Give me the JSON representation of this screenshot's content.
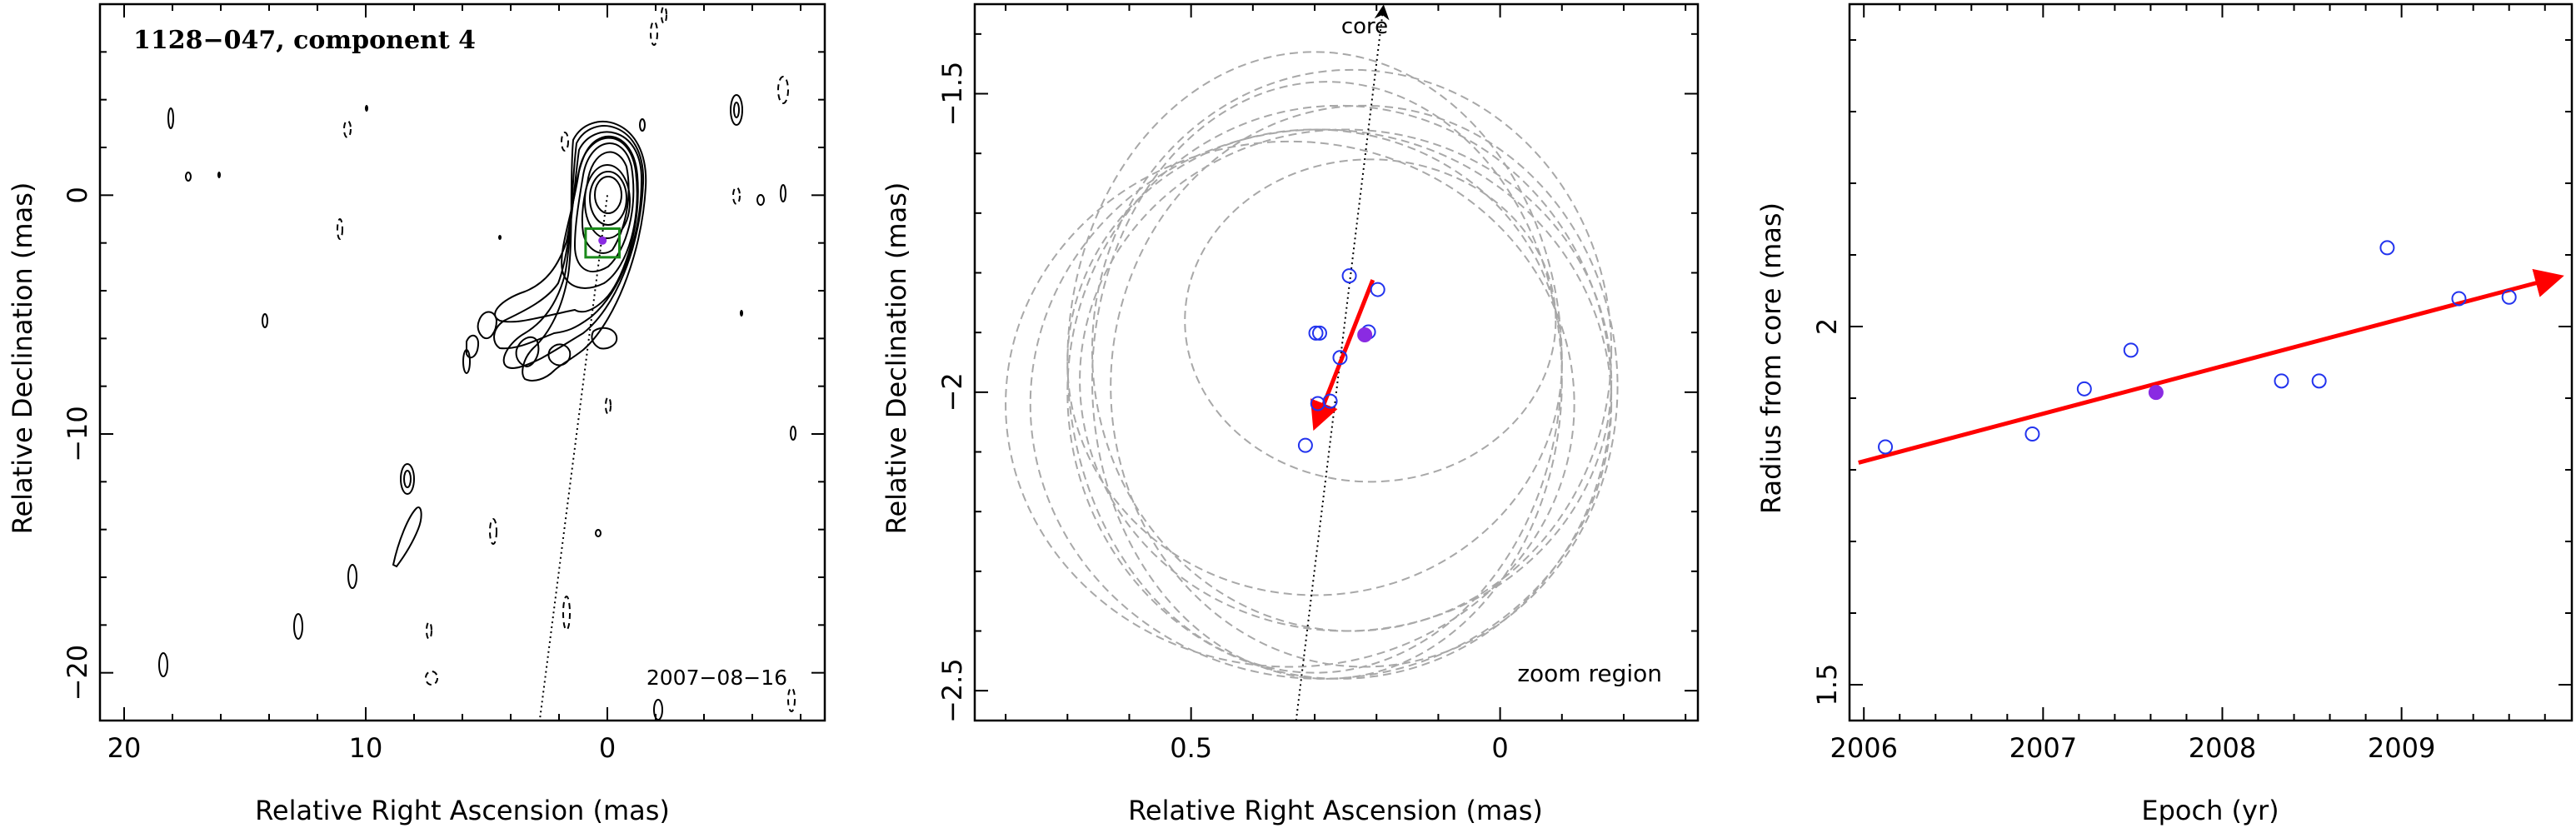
{
  "chart_data": [
    {
      "type": "contour",
      "title": "1128−047, component 4",
      "date_label": "2007−08−16",
      "xlabel": "Relative Right Ascension (mas)",
      "ylabel": "Relative Declination (mas)",
      "xlim": [
        21,
        -9
      ],
      "ylim": [
        -22,
        8
      ],
      "xticks": [
        {
          "v": 20,
          "label": "20"
        },
        {
          "v": 10,
          "label": "10"
        },
        {
          "v": 0,
          "label": "0"
        }
      ],
      "yticks": [
        {
          "v": 0,
          "label": "0"
        },
        {
          "v": -10,
          "label": "−10"
        },
        {
          "v": -20,
          "label": "−20"
        }
      ],
      "core_position": [
        0,
        0
      ],
      "component_position": [
        0.2,
        -1.9
      ],
      "jet_axis": [
        [
          0,
          0
        ],
        [
          2.8,
          -22
        ]
      ],
      "zoom_box": {
        "x": [
          -0.5,
          0.9
        ],
        "y": [
          -2.6,
          -1.4
        ]
      }
    },
    {
      "type": "scatter",
      "core_label": "core",
      "annotation": "zoom region",
      "xlabel": "Relative Right Ascension (mas)",
      "ylabel": "Relative Declination (mas)",
      "xlim": [
        0.85,
        -0.32
      ],
      "ylim": [
        -2.55,
        -1.35
      ],
      "xticks": [
        {
          "v": 0.5,
          "label": "0.5"
        },
        {
          "v": 0,
          "label": "0"
        }
      ],
      "yticks": [
        {
          "v": -1.5,
          "label": "−1.5"
        },
        {
          "v": -2,
          "label": "−2"
        },
        {
          "v": -2.5,
          "label": "−2.5"
        }
      ],
      "points": [
        {
          "x": 0.244,
          "y": -1.805
        },
        {
          "x": 0.198,
          "y": -1.828
        },
        {
          "x": 0.298,
          "y": -1.901
        },
        {
          "x": 0.292,
          "y": -1.901
        },
        {
          "x": 0.213,
          "y": -1.899
        },
        {
          "x": 0.259,
          "y": -1.942
        },
        {
          "x": 0.275,
          "y": -2.015
        },
        {
          "x": 0.295,
          "y": -2.019
        },
        {
          "x": 0.315,
          "y": -2.089
        }
      ],
      "highlight_point": {
        "x": 0.219,
        "y": -1.904
      },
      "motion_vector": {
        "from": [
          0.206,
          -1.812
        ],
        "to": [
          0.297,
          -2.051
        ]
      },
      "core_axis": {
        "from": [
          0.33,
          -2.55
        ],
        "to": [
          0.189,
          -1.35
        ]
      },
      "beams": [
        {
          "cx": 0.24,
          "cy": -1.93,
          "rx": 0.42,
          "ry": 0.47
        },
        {
          "cx": 0.3,
          "cy": -1.95,
          "rx": 0.4,
          "ry": 0.52
        },
        {
          "cx": 0.26,
          "cy": -2.0,
          "rx": 0.44,
          "ry": 0.48
        },
        {
          "cx": 0.28,
          "cy": -1.98,
          "rx": 0.38,
          "ry": 0.5
        },
        {
          "cx": 0.34,
          "cy": -2.02,
          "rx": 0.46,
          "ry": 0.44
        },
        {
          "cx": 0.22,
          "cy": -1.99,
          "rx": 0.41,
          "ry": 0.47
        },
        {
          "cx": 0.25,
          "cy": -1.98,
          "rx": 0.43,
          "ry": 0.42
        },
        {
          "cx": 0.29,
          "cy": -2.02,
          "rx": 0.47,
          "ry": 0.46
        },
        {
          "cx": 0.21,
          "cy": -1.88,
          "rx": 0.3,
          "ry": 0.27
        },
        {
          "cx": 0.3,
          "cy": -1.95,
          "rx": 0.4,
          "ry": 0.39
        }
      ]
    },
    {
      "type": "scatter",
      "xlabel": "Epoch (yr)",
      "ylabel": "Radius from core (mas)",
      "xlim": [
        2005.92,
        2009.95
      ],
      "ylim": [
        1.45,
        2.45
      ],
      "xticks": [
        {
          "v": 2006,
          "label": "2006"
        },
        {
          "v": 2007,
          "label": "2007"
        },
        {
          "v": 2008,
          "label": "2008"
        },
        {
          "v": 2009,
          "label": "2009"
        }
      ],
      "yticks": [
        {
          "v": 2,
          "label": "2"
        },
        {
          "v": 1.5,
          "label": "1.5"
        }
      ],
      "points": [
        {
          "x": 2006.12,
          "y": 1.832
        },
        {
          "x": 2006.94,
          "y": 1.85
        },
        {
          "x": 2007.23,
          "y": 1.913
        },
        {
          "x": 2007.49,
          "y": 1.967
        },
        {
          "x": 2008.33,
          "y": 1.924
        },
        {
          "x": 2008.54,
          "y": 1.924
        },
        {
          "x": 2008.92,
          "y": 2.11
        },
        {
          "x": 2009.32,
          "y": 2.039
        },
        {
          "x": 2009.6,
          "y": 2.041
        }
      ],
      "highlight_point": {
        "x": 2007.63,
        "y": 1.908
      },
      "fit_line": {
        "from": [
          2005.97,
          1.81
        ],
        "to": [
          2009.86,
          2.068
        ]
      }
    }
  ]
}
